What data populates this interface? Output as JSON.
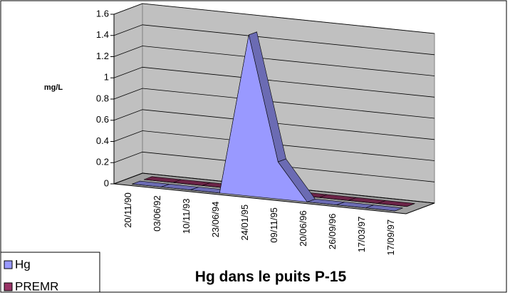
{
  "chart_data": {
    "type": "area3d",
    "title": "Hg dans le puits P-15",
    "y_label": "mg/L",
    "categories": [
      "20/11/90",
      "03/06/92",
      "10/11/93",
      "23/06/94",
      "24/01/95",
      "09/11/95",
      "20/06/96",
      "26/09/96",
      "17/03/97",
      "17/09/97"
    ],
    "series": [
      {
        "name": "Hg",
        "color": "#9999ff",
        "values": [
          0,
          0,
          0,
          0,
          1.52,
          0.35,
          0,
          0,
          0,
          0
        ]
      },
      {
        "name": "PREMR",
        "color": "#993366",
        "values": [
          0,
          0,
          0,
          0,
          0,
          0,
          0,
          0,
          0,
          0
        ]
      }
    ],
    "ylim": [
      0,
      1.6
    ],
    "yticks": [
      0,
      0.2,
      0.4,
      0.6,
      0.8,
      1,
      1.2,
      1.4,
      1.6
    ],
    "grid": true
  }
}
